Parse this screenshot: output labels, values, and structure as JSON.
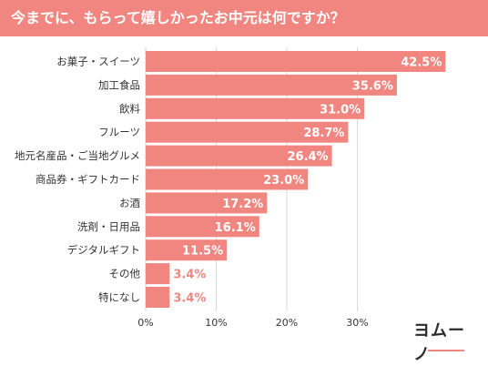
{
  "page": {
    "title": "今までに、もらって嬉しかったお中元は何ですか？",
    "logo_text": "ヨムーノ"
  },
  "colors": {
    "bar": "#f0867f",
    "title_bg": "#f0867f",
    "label_inside": "#ffffff",
    "label_outside": "#f0867f",
    "grid": "#d9d9d9",
    "text": "#333333"
  },
  "chart_data": {
    "type": "bar",
    "orientation": "horizontal",
    "title": "今までに、もらって嬉しかったお中元は何ですか？",
    "categories": [
      "お菓子・スイーツ",
      "加工食品",
      "飲料",
      "フルーツ",
      "地元名産品・ご当地グルメ",
      "商品券・ギフトカード",
      "お酒",
      "洗剤・日用品",
      "デジタルギフト",
      "その他",
      "特になし"
    ],
    "values": [
      42.5,
      35.6,
      31.0,
      28.7,
      26.4,
      23.0,
      17.2,
      16.1,
      11.5,
      3.4,
      3.4
    ],
    "value_labels": [
      "42.5%",
      "35.6%",
      "31.0%",
      "28.7%",
      "26.4%",
      "23.0%",
      "17.2%",
      "16.1%",
      "11.5%",
      "3.4%",
      "3.4%"
    ],
    "x_ticks": [
      0,
      10,
      20,
      30
    ],
    "x_tick_labels": [
      "0%",
      "10%",
      "20%",
      "30%"
    ],
    "xlim": [
      0,
      48
    ],
    "grid": true,
    "legend": "none"
  }
}
